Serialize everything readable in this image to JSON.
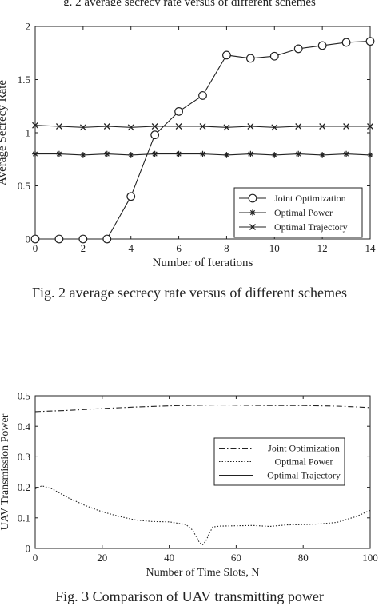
{
  "top_fragment": "g. 2 average secrecy rate versus of different schemes",
  "captions": [
    "Fig. 2 average secrecy rate versus of different schemes",
    "Fig. 3 Comparison of UAV transmitting power"
  ],
  "chart_data": [
    {
      "type": "line",
      "title": "",
      "xlabel": "Number of Iterations",
      "ylabel": "Average Secrecy Rate",
      "xlim": [
        0,
        14
      ],
      "ylim": [
        0,
        2
      ],
      "xticks": [
        0,
        2,
        4,
        6,
        8,
        10,
        12,
        14
      ],
      "yticks": [
        0,
        0.5,
        1,
        1.5,
        2
      ],
      "ytick_labels": [
        "0",
        "0.5",
        "1",
        "1.5",
        "2"
      ],
      "grid": false,
      "legend_position": "right",
      "series": [
        {
          "name": "Joint Optimization",
          "marker": "circle",
          "x": [
            0,
            1,
            2,
            3,
            4,
            5,
            6,
            7,
            8,
            9,
            10,
            11,
            12,
            13,
            14
          ],
          "y": [
            0,
            0,
            0,
            0,
            0.4,
            0.98,
            1.2,
            1.35,
            1.73,
            1.7,
            1.72,
            1.79,
            1.82,
            1.85,
            1.86
          ]
        },
        {
          "name": "Optimal Power",
          "marker": "star",
          "x": [
            0,
            1,
            2,
            3,
            4,
            5,
            6,
            7,
            8,
            9,
            10,
            11,
            12,
            13,
            14
          ],
          "y": [
            0.8,
            0.8,
            0.79,
            0.8,
            0.79,
            0.8,
            0.8,
            0.8,
            0.79,
            0.8,
            0.79,
            0.8,
            0.79,
            0.8,
            0.79
          ]
        },
        {
          "name": "Optimal Trajectory",
          "marker": "x",
          "x": [
            0,
            1,
            2,
            3,
            4,
            5,
            6,
            7,
            8,
            9,
            10,
            11,
            12,
            13,
            14
          ],
          "y": [
            1.07,
            1.06,
            1.05,
            1.06,
            1.05,
            1.06,
            1.06,
            1.06,
            1.05,
            1.06,
            1.05,
            1.06,
            1.06,
            1.06,
            1.06
          ]
        }
      ]
    },
    {
      "type": "line",
      "title": "",
      "xlabel": "Number of Time Slots, N",
      "ylabel": "UAV Transmission Power",
      "xlim": [
        0,
        100
      ],
      "ylim": [
        0,
        0.5
      ],
      "xticks": [
        0,
        20,
        40,
        60,
        80,
        100
      ],
      "yticks": [
        0,
        0.1,
        0.2,
        0.3,
        0.4,
        0.5
      ],
      "ytick_labels": [
        "0",
        "0.1",
        "0.2",
        "0.3",
        "0.4",
        "0.5"
      ],
      "grid": false,
      "legend_position": "right",
      "series": [
        {
          "name": "Joint Optimization",
          "style": "dash-dot",
          "x": [
            0,
            10,
            20,
            30,
            40,
            50,
            55,
            60,
            70,
            80,
            90,
            95,
            100
          ],
          "y": [
            0.448,
            0.452,
            0.458,
            0.463,
            0.467,
            0.469,
            0.47,
            0.469,
            0.468,
            0.468,
            0.466,
            0.464,
            0.461
          ]
        },
        {
          "name": "Optimal Power",
          "style": "dotted",
          "x": [
            0,
            2,
            5,
            10,
            15,
            20,
            25,
            30,
            35,
            40,
            45,
            47,
            48,
            49,
            50,
            51,
            52,
            53,
            55,
            60,
            65,
            70,
            75,
            80,
            85,
            90,
            93,
            96,
            98,
            100
          ],
          "y": [
            0.195,
            0.205,
            0.195,
            0.165,
            0.14,
            0.12,
            0.105,
            0.093,
            0.088,
            0.087,
            0.078,
            0.06,
            0.04,
            0.02,
            0.012,
            0.025,
            0.05,
            0.07,
            0.073,
            0.074,
            0.075,
            0.072,
            0.077,
            0.078,
            0.08,
            0.085,
            0.095,
            0.105,
            0.115,
            0.125
          ]
        },
        {
          "name": "Optimal Trajectory",
          "style": "solid",
          "x": [
            0,
            100
          ],
          "y": [
            0.5,
            0.5
          ]
        }
      ]
    }
  ]
}
